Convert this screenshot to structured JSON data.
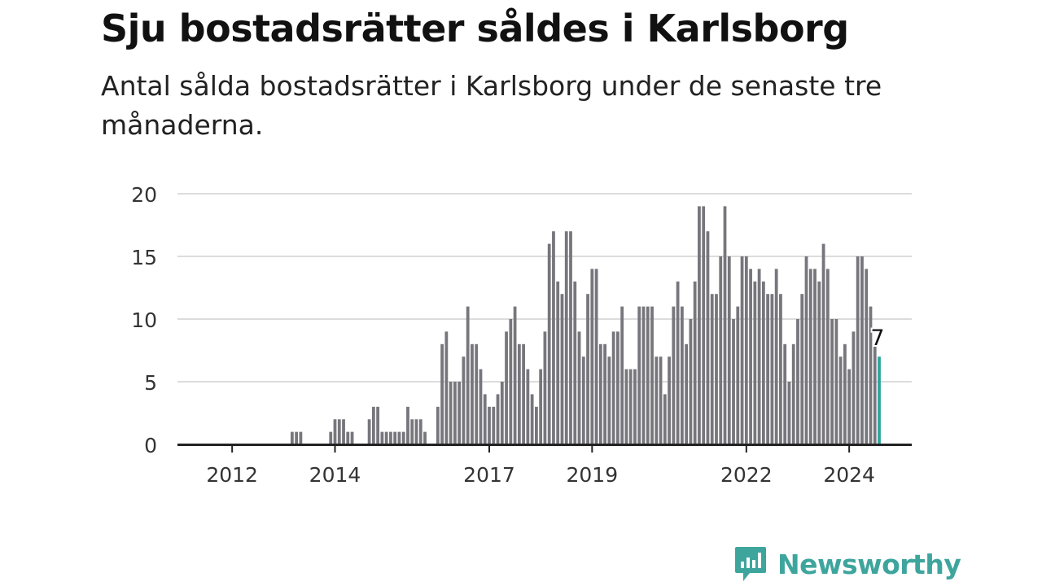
{
  "header": {
    "title": "Sju bostadsrätter såldes i Karlsborg",
    "subtitle": "Antal sålda bostadsrätter i Karlsborg under de senaste tre månaderna."
  },
  "brand": {
    "name": "Newsworthy",
    "icon": "newsworthy-logo-icon",
    "color": "#3ea59d"
  },
  "chart_data": {
    "type": "bar",
    "title": "Sju bostadsrätter såldes i Karlsborg",
    "subtitle": "Antal sålda bostadsrätter i Karlsborg under de senaste tre månaderna.",
    "xlabel": "",
    "ylabel": "",
    "ylim": [
      0,
      20
    ],
    "yticks": [
      0,
      5,
      10,
      15,
      20
    ],
    "xtick_labels": [
      "2012",
      "2014",
      "2017",
      "2019",
      "2022",
      "2024"
    ],
    "grid": true,
    "colors": {
      "bars": "#77767c",
      "highlight": "#2ca59c",
      "grid": "#dcdcdc",
      "axis": "#222222"
    },
    "highlight_label": "7",
    "values": [
      0,
      0,
      0,
      0,
      0,
      0,
      0,
      0,
      0,
      0,
      0,
      0,
      0,
      0,
      0,
      0,
      0,
      0,
      0,
      0,
      0,
      0,
      0,
      0,
      0,
      0,
      1,
      1,
      1,
      0,
      0,
      0,
      0,
      0,
      0,
      1,
      2,
      2,
      2,
      1,
      1,
      0,
      0,
      0,
      2,
      3,
      3,
      1,
      1,
      1,
      1,
      1,
      1,
      3,
      2,
      2,
      2,
      1,
      0,
      0,
      3,
      8,
      9,
      5,
      5,
      5,
      7,
      11,
      8,
      8,
      6,
      4,
      3,
      3,
      4,
      5,
      9,
      10,
      11,
      8,
      8,
      6,
      4,
      3,
      6,
      9,
      16,
      17,
      13,
      12,
      17,
      17,
      13,
      9,
      7,
      12,
      14,
      14,
      8,
      8,
      7,
      9,
      9,
      11,
      6,
      6,
      6,
      11,
      11,
      11,
      11,
      7,
      7,
      4,
      7,
      11,
      13,
      11,
      8,
      10,
      13,
      19,
      19,
      17,
      12,
      12,
      15,
      19,
      15,
      10,
      11,
      15,
      15,
      14,
      13,
      14,
      13,
      12,
      12,
      14,
      12,
      8,
      5,
      8,
      10,
      12,
      15,
      14,
      14,
      13,
      16,
      14,
      10,
      10,
      7,
      8,
      6,
      9,
      15,
      15,
      14,
      11,
      8,
      7
    ]
  }
}
